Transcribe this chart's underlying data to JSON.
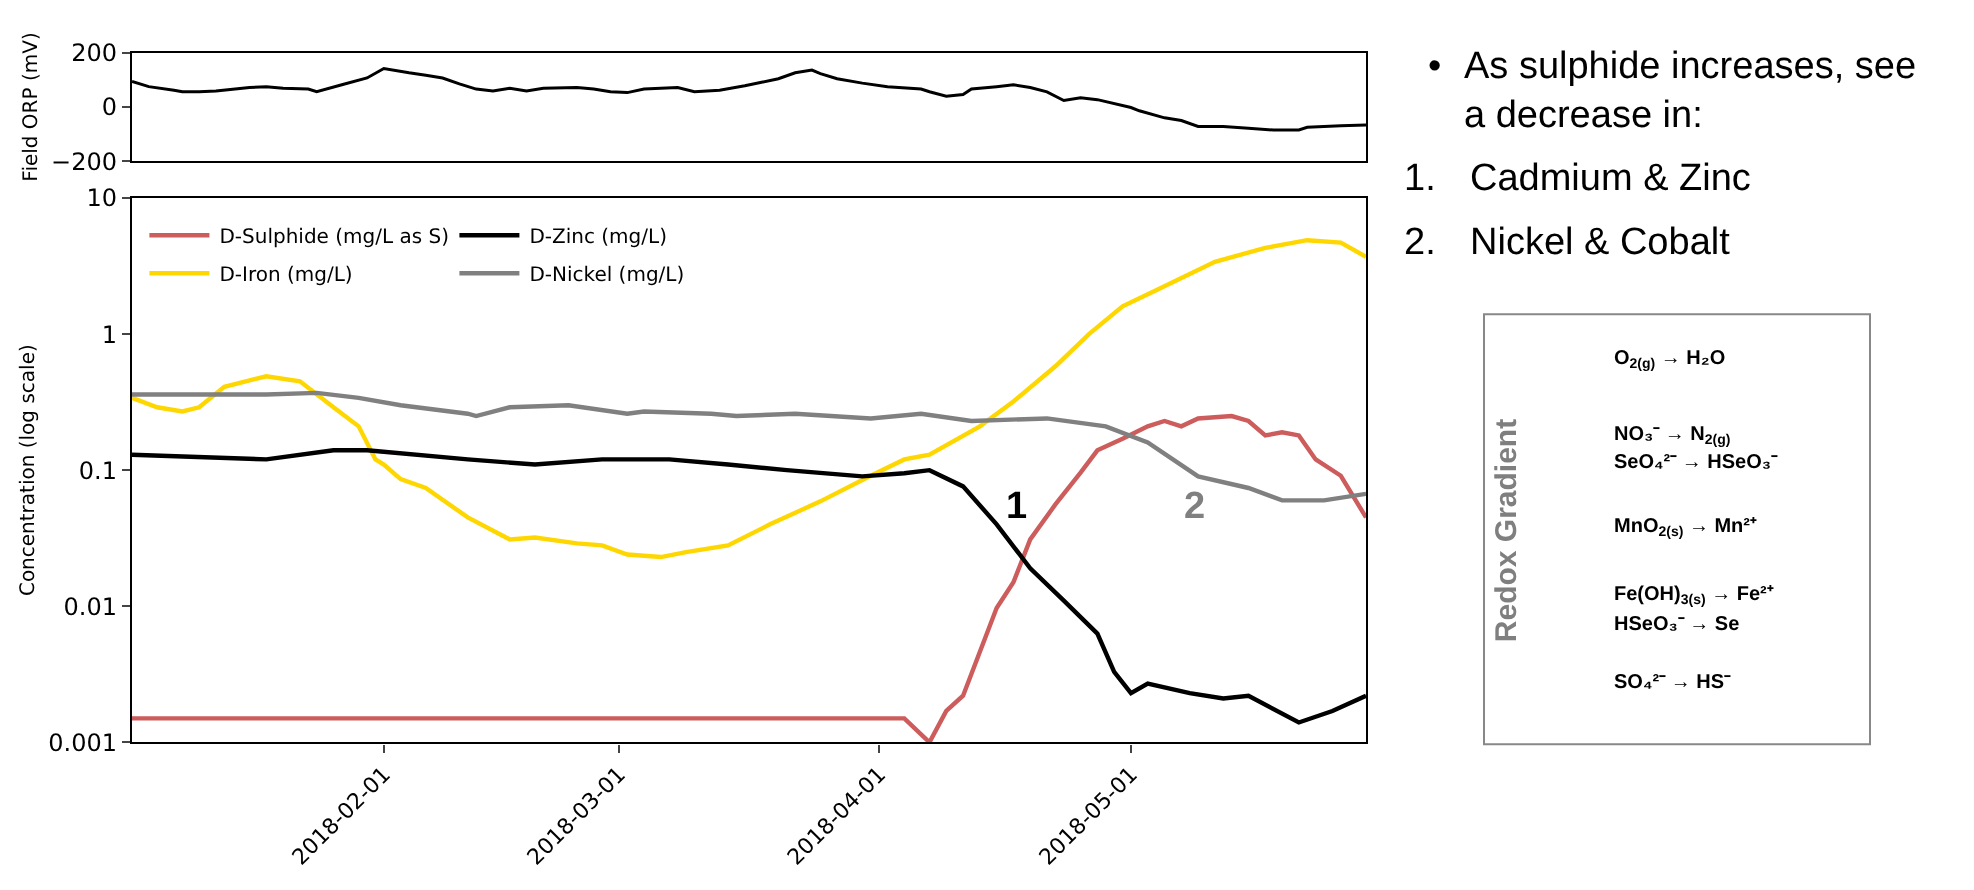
{
  "chart_data": [
    {
      "type": "line",
      "ylabel": "Field ORP (mV)",
      "xlim": [
        "2018-01-02",
        "2018-05-29"
      ],
      "ylim": [
        -200,
        200
      ],
      "yticks": [
        -200,
        0,
        200
      ],
      "tick_labels": "y",
      "grid": false,
      "series": [
        {
          "color": "#000000",
          "x": [
            "2018-01-02",
            "2018-01-04",
            "2018-01-07",
            "2018-01-08",
            "2018-01-10",
            "2018-01-12",
            "2018-01-16",
            "2018-01-18",
            "2018-01-20",
            "2018-01-23",
            "2018-01-24",
            "2018-01-27",
            "2018-01-30",
            "2018-02-01",
            "2018-02-04",
            "2018-02-06",
            "2018-02-08",
            "2018-02-10",
            "2018-02-12",
            "2018-02-14",
            "2018-02-16",
            "2018-02-18",
            "2018-02-20",
            "2018-02-24",
            "2018-02-26",
            "2018-02-28",
            "2018-03-02",
            "2018-03-04",
            "2018-03-08",
            "2018-03-10",
            "2018-03-13",
            "2018-03-16",
            "2018-03-18",
            "2018-03-20",
            "2018-03-22",
            "2018-03-24",
            "2018-03-25",
            "2018-03-27",
            "2018-03-30",
            "2018-04-02",
            "2018-04-06",
            "2018-04-07",
            "2018-04-09",
            "2018-04-11",
            "2018-04-12",
            "2018-04-15",
            "2018-04-17",
            "2018-04-19",
            "2018-04-21",
            "2018-04-23",
            "2018-04-25",
            "2018-04-27",
            "2018-05-01",
            "2018-05-02",
            "2018-05-05",
            "2018-05-07",
            "2018-05-09",
            "2018-05-12",
            "2018-05-15",
            "2018-05-18",
            "2018-05-21",
            "2018-05-22",
            "2018-05-26",
            "2018-05-29"
          ],
          "values": [
            94,
            75,
            62,
            56,
            56,
            59,
            72,
            75,
            69,
            66,
            56,
            82,
            107,
            142,
            126,
            117,
            107,
            85,
            66,
            59,
            69,
            59,
            69,
            72,
            66,
            56,
            53,
            66,
            72,
            56,
            62,
            78,
            91,
            104,
            126,
            136,
            123,
            104,
            88,
            75,
            66,
            56,
            40,
            46,
            66,
            75,
            82,
            72,
            56,
            24,
            34,
            27,
            -2,
            -14,
            -40,
            -50,
            -72,
            -72,
            -78,
            -85,
            -85,
            -75,
            -69,
            -66
          ]
        }
      ]
    },
    {
      "type": "line",
      "ylabel": "Concentration (log scale)",
      "log": "y",
      "xlim": [
        "2018-01-02",
        "2018-05-29"
      ],
      "xticks": [
        "2018-02-01",
        "2018-03-01",
        "2018-04-01",
        "2018-05-01"
      ],
      "ylim": [
        0.001,
        10
      ],
      "yticks": [
        0.001,
        0.01,
        0.1,
        1,
        10
      ],
      "grid": false,
      "legend": "top left",
      "annotations": [
        "1",
        "2"
      ],
      "series": [
        {
          "name": "D-Sulphide (mg/L as S)",
          "color": "#cd5c5c",
          "x": [
            "2018-01-02",
            "2018-04-04",
            "2018-04-07",
            "2018-04-09",
            "2018-04-11",
            "2018-04-15",
            "2018-04-17",
            "2018-04-19",
            "2018-04-22",
            "2018-04-25",
            "2018-04-27",
            "2018-04-30",
            "2018-05-03",
            "2018-05-05",
            "2018-05-07",
            "2018-05-09",
            "2018-05-13",
            "2018-05-15",
            "2018-05-17",
            "2018-05-19",
            "2018-05-21",
            "2018-05-23",
            "2018-05-26",
            "2018-05-29"
          ],
          "values": [
            0.0015,
            0.0015,
            0.001,
            0.0017,
            0.0022,
            0.0097,
            0.015,
            0.031,
            0.056,
            0.096,
            0.14,
            0.17,
            0.21,
            0.23,
            0.21,
            0.24,
            0.25,
            0.23,
            0.18,
            0.19,
            0.18,
            0.12,
            0.091,
            0.045
          ]
        },
        {
          "name": "D-Iron (mg/L)",
          "color": "#ffd700",
          "x": [
            "2018-01-02",
            "2018-01-05",
            "2018-01-08",
            "2018-01-10",
            "2018-01-13",
            "2018-01-18",
            "2018-01-22",
            "2018-01-26",
            "2018-01-29",
            "2018-01-31",
            "2018-02-01",
            "2018-02-03",
            "2018-02-06",
            "2018-02-11",
            "2018-02-16",
            "2018-02-19",
            "2018-02-24",
            "2018-02-27",
            "2018-03-02",
            "2018-03-06",
            "2018-03-09",
            "2018-03-14",
            "2018-03-19",
            "2018-03-25",
            "2018-03-31",
            "2018-04-04",
            "2018-04-07",
            "2018-04-13",
            "2018-04-17",
            "2018-04-22",
            "2018-04-26",
            "2018-04-30",
            "2018-05-04",
            "2018-05-11",
            "2018-05-17",
            "2018-05-22",
            "2018-05-26",
            "2018-05-29"
          ],
          "values": [
            0.34,
            0.29,
            0.27,
            0.29,
            0.41,
            0.49,
            0.45,
            0.29,
            0.21,
            0.12,
            0.11,
            0.086,
            0.074,
            0.045,
            0.031,
            0.032,
            0.029,
            0.028,
            0.024,
            0.023,
            0.025,
            0.028,
            0.04,
            0.059,
            0.091,
            0.12,
            0.13,
            0.21,
            0.32,
            0.58,
            1.0,
            1.6,
            2.1,
            3.4,
            4.3,
            4.9,
            4.7,
            3.7
          ]
        },
        {
          "name": "D-Zinc (mg/L)",
          "color": "#000000",
          "x": [
            "2018-01-02",
            "2018-01-18",
            "2018-01-26",
            "2018-01-30",
            "2018-02-11",
            "2018-02-19",
            "2018-02-27",
            "2018-03-03",
            "2018-03-07",
            "2018-03-14",
            "2018-03-21",
            "2018-03-30",
            "2018-04-04",
            "2018-04-07",
            "2018-04-11",
            "2018-04-15",
            "2018-04-19",
            "2018-04-23",
            "2018-04-27",
            "2018-04-29",
            "2018-05-01",
            "2018-05-03",
            "2018-05-08",
            "2018-05-12",
            "2018-05-15",
            "2018-05-21",
            "2018-05-25",
            "2018-05-29"
          ],
          "values": [
            0.13,
            0.12,
            0.14,
            0.14,
            0.12,
            0.11,
            0.12,
            0.12,
            0.12,
            0.11,
            0.1,
            0.09,
            0.095,
            0.1,
            0.076,
            0.04,
            0.019,
            0.011,
            0.0063,
            0.0033,
            0.0023,
            0.0027,
            0.0023,
            0.0021,
            0.0022,
            0.0014,
            0.0017,
            0.0022
          ]
        },
        {
          "name": "D-Nickel (mg/L)",
          "color": "#808080",
          "x": [
            "2018-01-02",
            "2018-01-18",
            "2018-01-24",
            "2018-01-29",
            "2018-02-03",
            "2018-02-11",
            "2018-02-12",
            "2018-02-16",
            "2018-02-23",
            "2018-03-02",
            "2018-03-04",
            "2018-03-12",
            "2018-03-15",
            "2018-03-22",
            "2018-03-31",
            "2018-04-06",
            "2018-04-12",
            "2018-04-21",
            "2018-04-28",
            "2018-05-03",
            "2018-05-09",
            "2018-05-15",
            "2018-05-19",
            "2018-05-24",
            "2018-05-29"
          ],
          "values": [
            0.36,
            0.36,
            0.37,
            0.34,
            0.3,
            0.26,
            0.25,
            0.29,
            0.3,
            0.26,
            0.27,
            0.26,
            0.25,
            0.26,
            0.24,
            0.26,
            0.23,
            0.24,
            0.21,
            0.16,
            0.09,
            0.074,
            0.06,
            0.06,
            0.067
          ]
        }
      ]
    },
    {
      "type": "other",
      "annotations": [
        "• As sulphide increases, see a decrease in:",
        "1. Cadmium & Zinc",
        "2. Nickel & Cobalt"
      ]
    },
    {
      "type": "other",
      "title": "Redox Gradient",
      "annotations": [
        "O$_{2(g)}$ → H₂O",
        "NO₃⁻ → N$_{2(g)}$",
        "SeO₄²⁻ → HSeO₃⁻",
        "MnO$_{2(s)}$ → Mn²⁺",
        "Fe(OH)$_{3(s)}$ → Fe²⁺",
        "HSeO₃⁻ → Se",
        "SO₄²⁻ → HS⁻"
      ]
    }
  ]
}
